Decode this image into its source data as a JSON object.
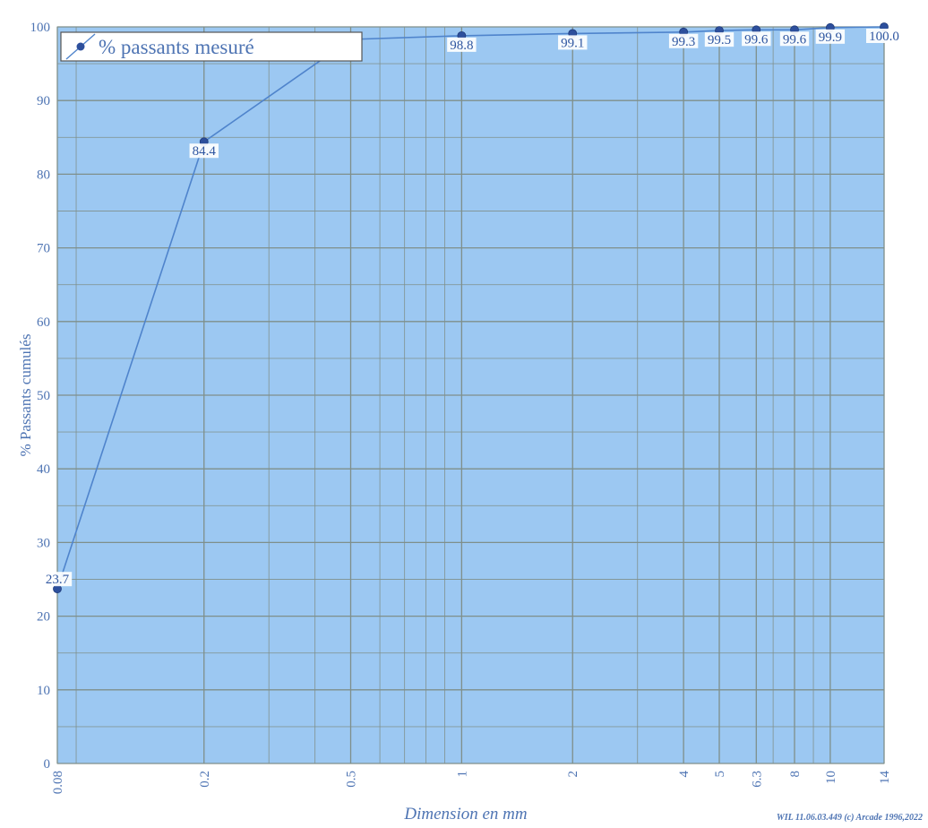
{
  "chart_data": {
    "type": "line",
    "xscale": "log",
    "x": [
      0.08,
      0.2,
      0.5,
      1,
      2,
      4,
      5,
      6.3,
      8,
      10,
      14
    ],
    "series": [
      {
        "name": "% passants mesuré",
        "values": [
          23.7,
          84.4,
          98.3,
          98.8,
          99.1,
          99.3,
          99.5,
          99.6,
          99.6,
          99.9,
          100.0
        ],
        "labels": [
          "23.7",
          "84.4",
          "",
          "98.8",
          "99.1",
          "99.3",
          "99.5",
          "99.6",
          "99.6",
          "99.9",
          "100.0"
        ]
      }
    ],
    "xticks": [
      "0.08",
      "0.2",
      "0.5",
      "1",
      "2",
      "4",
      "5",
      "6.3",
      "8",
      "10",
      "14"
    ],
    "yticks": [
      "0",
      "10",
      "20",
      "30",
      "40",
      "50",
      "60",
      "70",
      "80",
      "90",
      "100"
    ],
    "xlabel": "Dimension en mm",
    "ylabel": "% Passants cumulés",
    "xlim": [
      0.08,
      14
    ],
    "ylim": [
      0,
      100
    ],
    "grid": true,
    "legend": "top-left",
    "colors": {
      "plot_background": "#9cc8f2",
      "grid": "#7f8f8a",
      "line": "#4f84cc",
      "marker": "#2d4f9c",
      "text": "#4e74b3"
    }
  },
  "footer": {
    "credit": "WIL 11.06.03.449 (c) Arcade 1996,2022"
  }
}
